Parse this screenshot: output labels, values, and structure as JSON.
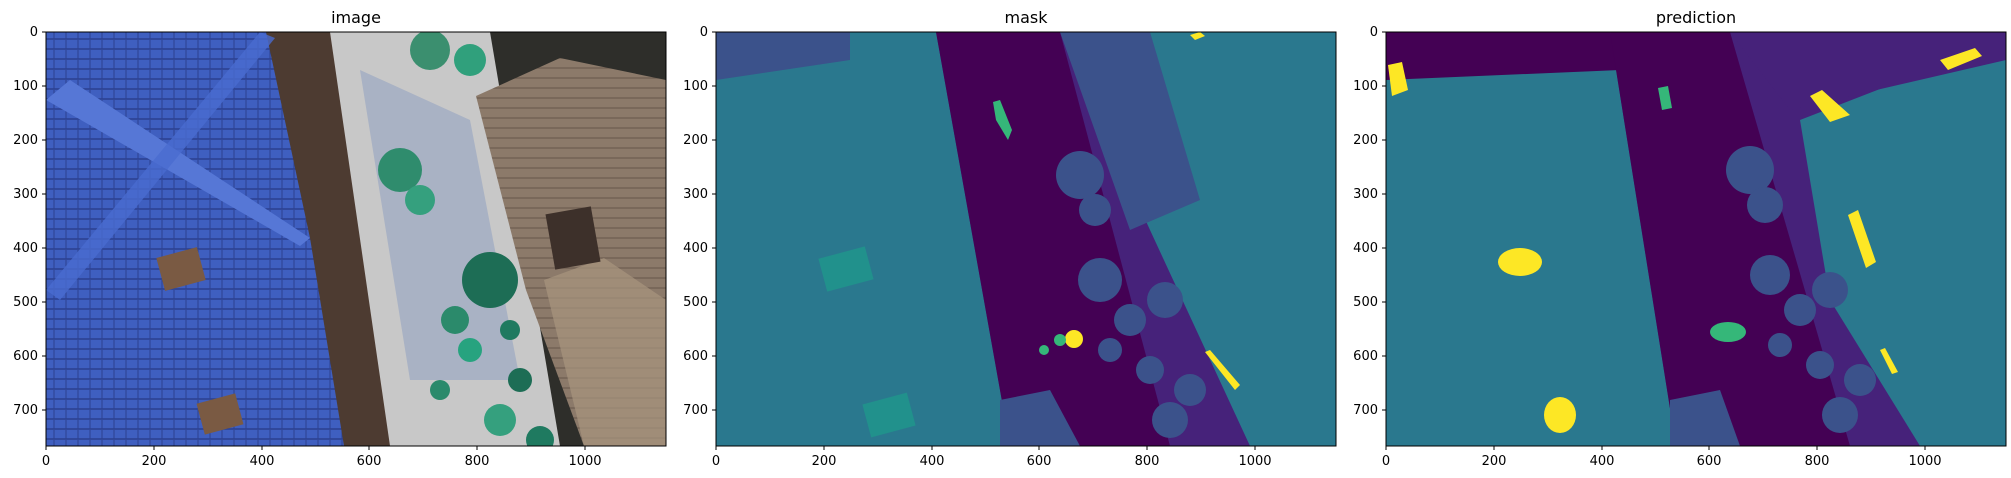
{
  "panels": [
    {
      "title": "image",
      "kind": "photo"
    },
    {
      "title": "mask",
      "kind": "mask"
    },
    {
      "title": "prediction",
      "kind": "prediction"
    }
  ],
  "axes": {
    "x_range": [
      0,
      1150
    ],
    "y_range": [
      0,
      768
    ],
    "x_ticks": [
      0,
      200,
      400,
      600,
      800,
      1000
    ],
    "y_ticks": [
      0,
      100,
      200,
      300,
      400,
      500,
      600,
      700
    ]
  },
  "colors": {
    "viridis_dark": "#440154",
    "viridis_purple": "#46227a",
    "viridis_blue": "#3b528b",
    "viridis_teal": "#2a788e",
    "viridis_green": "#22a884",
    "viridis_light_green": "#35b779",
    "viridis_yellow": "#fde725",
    "roof_blue": "#3f5fc0",
    "roof_brown": "#8c7a6a"
  }
}
